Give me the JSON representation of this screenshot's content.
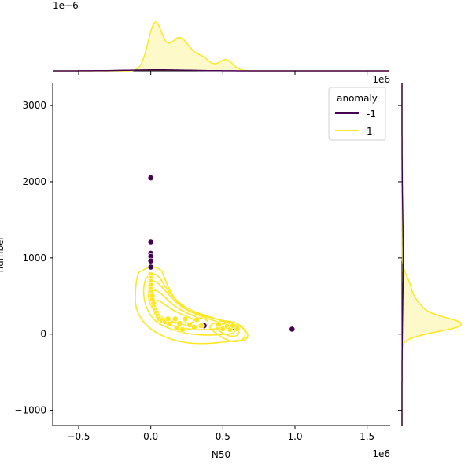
{
  "chart_data": {
    "type": "scatter",
    "kind": "jointplot with marginal KDE",
    "title": "",
    "xlabel": "N50",
    "ylabel": "number",
    "x_scale_label": "1e6",
    "y_scale_label": "1e6",
    "top_marginal_scale_label": "1e−6",
    "xlim": [
      -0.68,
      1.66
    ],
    "ylim": [
      -1200,
      3300
    ],
    "x_ticks": [
      -0.5,
      0.0,
      0.5,
      1.0,
      1.5
    ],
    "x_tick_labels": [
      "−0.5",
      "0.0",
      "0.5",
      "1.0",
      "1.5"
    ],
    "y_ticks": [
      -1000,
      0,
      1000,
      2000,
      3000
    ],
    "y_tick_labels": [
      "−1000",
      "0",
      "1000",
      "2000",
      "3000"
    ],
    "grid": false,
    "legend": {
      "title": "anomaly",
      "placement": "top-right",
      "entries": [
        {
          "label": "-1",
          "color": "#440154"
        },
        {
          "label": "1",
          "color": "#fde725"
        }
      ]
    },
    "series": [
      {
        "name": "-1",
        "color": "#440154",
        "points": [
          [
            0.0,
            2050
          ],
          [
            0.0,
            1210
          ],
          [
            0.0,
            1060
          ],
          [
            0.0,
            1020
          ],
          [
            0.0,
            960
          ],
          [
            0.0,
            880
          ],
          [
            0.37,
            110
          ],
          [
            0.58,
            85
          ],
          [
            0.98,
            65
          ]
        ]
      },
      {
        "name": "1",
        "color": "#fde725",
        "points": [
          [
            0.0,
            780
          ],
          [
            0.0,
            730
          ],
          [
            0.0,
            690
          ],
          [
            0.0,
            640
          ],
          [
            0.0,
            590
          ],
          [
            0.0,
            550
          ],
          [
            0.01,
            500
          ],
          [
            0.01,
            450
          ],
          [
            0.02,
            400
          ],
          [
            0.02,
            360
          ],
          [
            0.03,
            320
          ],
          [
            0.04,
            280
          ],
          [
            0.05,
            240
          ],
          [
            0.06,
            200
          ],
          [
            0.08,
            180
          ],
          [
            0.1,
            160
          ],
          [
            0.12,
            200
          ],
          [
            0.13,
            130
          ],
          [
            0.17,
            200
          ],
          [
            0.18,
            80
          ],
          [
            0.2,
            140
          ],
          [
            0.22,
            60
          ],
          [
            0.24,
            200
          ],
          [
            0.27,
            120
          ],
          [
            0.3,
            90
          ],
          [
            0.32,
            190
          ],
          [
            0.35,
            110
          ],
          [
            0.47,
            130
          ],
          [
            0.5,
            70
          ],
          [
            0.53,
            100
          ],
          [
            0.55,
            60
          ],
          [
            0.57,
            110
          ],
          [
            0.6,
            70
          ]
        ]
      }
    ]
  }
}
